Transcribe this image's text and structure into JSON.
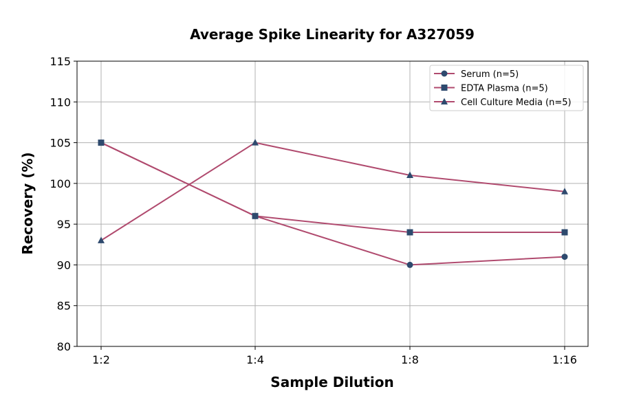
{
  "chart_data": {
    "type": "line",
    "title": "Average Spike Linearity for A327059",
    "xlabel": "Sample Dilution",
    "ylabel": "Recovery (%)",
    "categories": [
      "1:2",
      "1:4",
      "1:8",
      "1:16"
    ],
    "ylim": [
      80,
      115
    ],
    "yticks": [
      80,
      85,
      90,
      95,
      100,
      105,
      110,
      115
    ],
    "grid": true,
    "legend_position": "top-right",
    "line_color": "#b04a6e",
    "marker_color": "#2e4a6e",
    "series": [
      {
        "name": "Serum (n=5)",
        "marker": "circle",
        "values": [
          105,
          96,
          90,
          91
        ]
      },
      {
        "name": "EDTA Plasma (n=5)",
        "marker": "square",
        "values": [
          105,
          96,
          94,
          94
        ]
      },
      {
        "name": "Cell Culture Media (n=5)",
        "marker": "triangle",
        "values": [
          93,
          105,
          101,
          99
        ]
      }
    ]
  }
}
